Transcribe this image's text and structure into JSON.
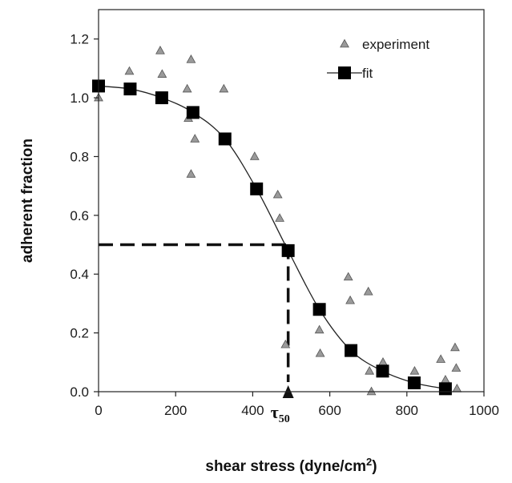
{
  "chart_data": {
    "type": "scatter",
    "xlabel": "shear stress (dyne/cm",
    "xlabel_superscript": "2",
    "xlabel_close": ")",
    "ylabel": "adherent fraction",
    "xlim": [
      0,
      1000
    ],
    "ylim": [
      0,
      1.3
    ],
    "x_ticks": [
      0,
      200,
      400,
      600,
      800,
      1000
    ],
    "x_tick_labels": [
      "0",
      "200",
      "400",
      "600",
      "800",
      "1000"
    ],
    "y_ticks": [
      0.0,
      0.2,
      0.4,
      0.6,
      0.8,
      1.0,
      1.2
    ],
    "y_tick_labels": [
      "0.0",
      "0.2",
      "0.4",
      "0.6",
      "0.8",
      "1.0",
      "1.2"
    ],
    "grid": false,
    "legend_position": "top-right",
    "series": [
      {
        "name": "experiment",
        "marker": "triangle",
        "color": "#9a9a9a",
        "x": [
          0,
          80,
          160,
          165,
          240,
          230,
          250,
          233,
          240,
          325,
          405,
          465,
          470,
          485,
          573,
          575,
          648,
          653,
          700,
          703,
          708,
          738,
          820,
          888,
          900,
          925,
          928,
          930
        ],
        "y": [
          1.0,
          1.09,
          1.16,
          1.08,
          1.13,
          1.03,
          0.86,
          0.93,
          0.74,
          1.03,
          0.8,
          0.67,
          0.59,
          0.16,
          0.21,
          0.13,
          0.39,
          0.31,
          0.34,
          0.07,
          0.0,
          0.1,
          0.07,
          0.11,
          0.04,
          0.15,
          0.08,
          0.01
        ]
      },
      {
        "name": "fit",
        "marker": "square",
        "color": "#000000",
        "x": [
          0,
          82,
          164,
          245,
          328,
          410,
          492,
          573,
          655,
          737,
          819,
          900
        ],
        "y": [
          1.04,
          1.03,
          1.0,
          0.95,
          0.86,
          0.69,
          0.48,
          0.28,
          0.14,
          0.07,
          0.03,
          0.01
        ]
      }
    ],
    "annotations": {
      "tau50_x": 492,
      "tau50_y": 0.5,
      "tau_label": "τ",
      "tau_subscript": "50"
    }
  }
}
